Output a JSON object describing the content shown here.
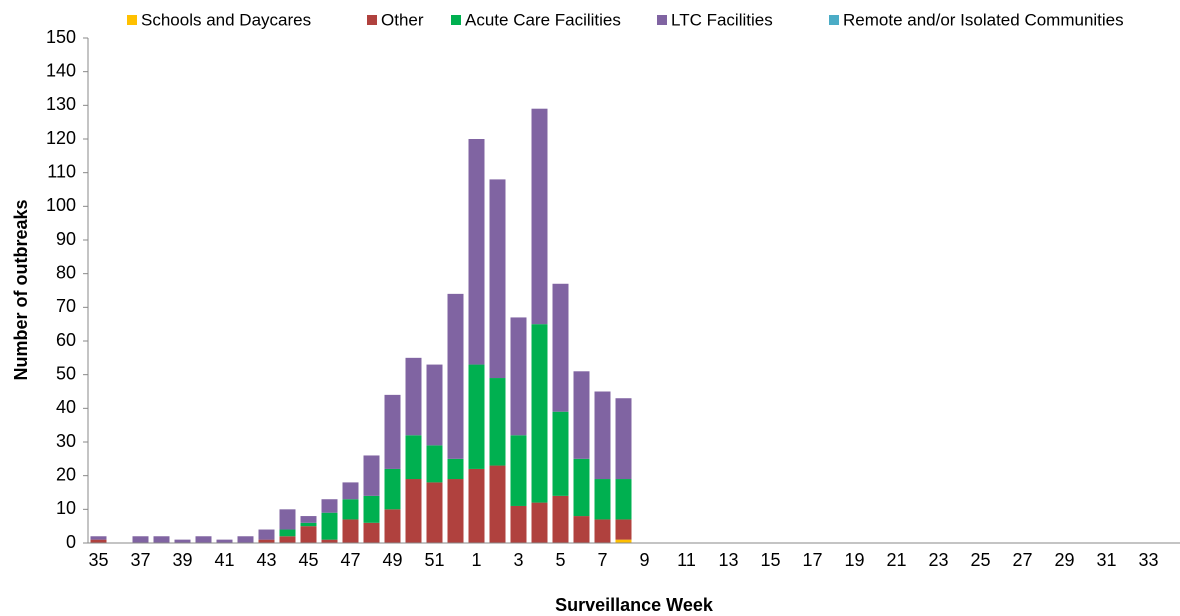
{
  "chart_data": {
    "type": "stacked_bar",
    "x_label": "Surveillance Week",
    "y_label": "Number of outbreaks",
    "categories": [
      "35",
      null,
      "37",
      null,
      "39",
      null,
      "41",
      null,
      "43",
      null,
      "45",
      null,
      "47",
      null,
      "49",
      null,
      "51",
      null,
      "1",
      null,
      "3",
      null,
      "5",
      null,
      "7",
      null,
      "9",
      null,
      "11",
      null,
      "13",
      null,
      "15",
      null,
      "17",
      null,
      "19",
      null,
      "21",
      null,
      "23",
      null,
      "25",
      null,
      "27",
      null,
      "29",
      null,
      "31",
      null,
      "33",
      null
    ],
    "series": [
      {
        "name": "Schools and Daycares",
        "color": "#ffc000",
        "values": [
          0,
          0,
          0,
          0,
          0,
          0,
          0,
          0,
          0,
          0,
          0,
          0,
          0,
          0,
          0,
          0,
          0,
          0,
          0,
          0,
          0,
          0,
          0,
          0,
          0,
          1,
          0,
          0,
          0,
          0,
          0,
          0,
          0,
          0,
          0,
          0,
          0,
          0,
          0,
          0,
          0,
          0,
          0,
          0,
          0,
          0,
          0,
          0,
          0,
          0,
          0,
          0
        ]
      },
      {
        "name": "Other",
        "color": "#b0413e",
        "values": [
          1,
          0,
          0,
          0,
          0,
          0,
          0,
          0,
          1,
          2,
          5,
          1,
          7,
          6,
          10,
          19,
          18,
          19,
          22,
          23,
          11,
          12,
          14,
          8,
          7,
          6,
          0,
          0,
          0,
          0,
          0,
          0,
          0,
          0,
          0,
          0,
          0,
          0,
          0,
          0,
          0,
          0,
          0,
          0,
          0,
          0,
          0,
          0,
          0,
          0,
          0,
          0
        ]
      },
      {
        "name": "Acute Care Facilities",
        "color": "#00b050",
        "values": [
          0,
          0,
          0,
          0,
          0,
          0,
          0,
          0,
          0,
          2,
          1,
          8,
          6,
          8,
          12,
          13,
          11,
          6,
          31,
          26,
          21,
          53,
          25,
          17,
          12,
          12,
          0,
          0,
          0,
          0,
          0,
          0,
          0,
          0,
          0,
          0,
          0,
          0,
          0,
          0,
          0,
          0,
          0,
          0,
          0,
          0,
          0,
          0,
          0,
          0,
          0,
          0
        ]
      },
      {
        "name": "LTC Facilities",
        "color": "#8064a2",
        "values": [
          1,
          0,
          2,
          2,
          1,
          2,
          1,
          2,
          3,
          6,
          2,
          4,
          5,
          12,
          22,
          23,
          24,
          49,
          67,
          59,
          35,
          64,
          38,
          26,
          26,
          24,
          0,
          0,
          0,
          0,
          0,
          0,
          0,
          0,
          0,
          0,
          0,
          0,
          0,
          0,
          0,
          0,
          0,
          0,
          0,
          0,
          0,
          0,
          0,
          0,
          0,
          0
        ]
      },
      {
        "name": "Remote and/or Isolated Communities",
        "color": "#4bacc6",
        "values": [
          0,
          0,
          0,
          0,
          0,
          0,
          0,
          0,
          0,
          0,
          0,
          0,
          0,
          0,
          0,
          0,
          0,
          0,
          0,
          0,
          0,
          0,
          0,
          0,
          0,
          0,
          0,
          0,
          0,
          0,
          0,
          0,
          0,
          0,
          0,
          0,
          0,
          0,
          0,
          0,
          0,
          0,
          0,
          0,
          0,
          0,
          0,
          0,
          0,
          0,
          0,
          0
        ]
      }
    ],
    "ylim": [
      0,
      150
    ],
    "yticks": [
      0,
      10,
      20,
      30,
      40,
      50,
      60,
      70,
      80,
      90,
      100,
      110,
      120,
      130,
      140,
      150
    ],
    "grid": false,
    "legend": "top"
  }
}
